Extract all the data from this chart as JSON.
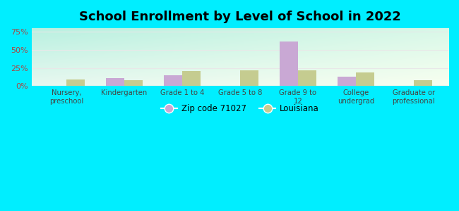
{
  "title": "School Enrollment by Level of School in 2022",
  "categories": [
    "Nursery,\npreschool",
    "Kindergarten",
    "Grade 1 to 4",
    "Grade 5 to 8",
    "Grade 9 to\n12",
    "College\nundergrad",
    "Graduate or\nprofessional"
  ],
  "zip_values": [
    0,
    11,
    15,
    0,
    62,
    13,
    0
  ],
  "la_values": [
    9,
    8,
    21,
    22,
    22,
    19,
    8
  ],
  "zip_color": "#c9a8d4",
  "la_color": "#c5cc90",
  "zip_label": "Zip code 71027",
  "la_label": "Louisiana",
  "ylim": [
    0,
    80
  ],
  "yticks": [
    0,
    25,
    50,
    75
  ],
  "ytick_labels": [
    "0%",
    "25%",
    "50%",
    "75%"
  ],
  "outer_bg": "#00eeff",
  "plot_bg_topleft": "#b8f0e0",
  "plot_bg_bottomright": "#f8fff0",
  "tick_color": "#aa4444",
  "title_fontsize": 13,
  "bar_width": 0.32,
  "grid_color": "#e8e8e8"
}
